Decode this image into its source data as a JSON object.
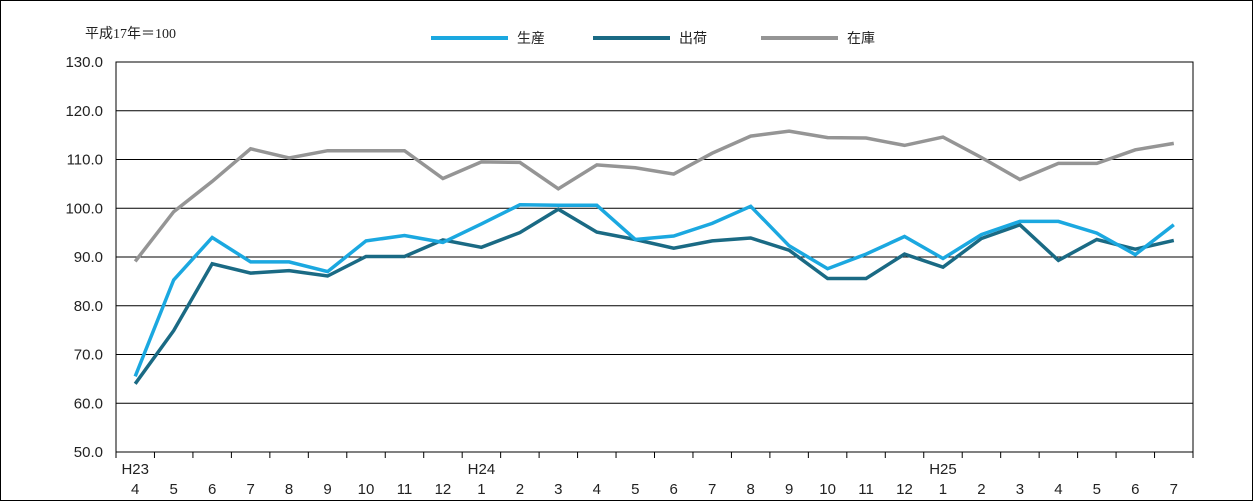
{
  "chart_data": {
    "type": "line",
    "title": "",
    "note": "平成17年＝100",
    "xlabel": "",
    "ylabel": "",
    "ylim": [
      50,
      130
    ],
    "yticks": [
      "50.0",
      "60.0",
      "70.0",
      "80.0",
      "90.0",
      "100.0",
      "110.0",
      "120.0",
      "130.0"
    ],
    "grid": true,
    "legend_position": "top-center",
    "year_labels": [
      {
        "index": 0,
        "label": "H23"
      },
      {
        "index": 9,
        "label": "H24"
      },
      {
        "index": 21,
        "label": "H25"
      }
    ],
    "categories": [
      "4",
      "5",
      "6",
      "7",
      "8",
      "9",
      "10",
      "11",
      "12",
      "1",
      "2",
      "3",
      "4",
      "5",
      "6",
      "7",
      "8",
      "9",
      "10",
      "11",
      "12",
      "1",
      "2",
      "3",
      "4",
      "5",
      "6",
      "7"
    ],
    "series": [
      {
        "name": "生産",
        "color": "#1ba8e0",
        "values": [
          65.5,
          85.3,
          94.0,
          89.0,
          89.0,
          87.0,
          93.3,
          94.4,
          93.0,
          96.8,
          100.7,
          100.6,
          100.6,
          93.6,
          94.3,
          96.9,
          100.4,
          92.3,
          87.6,
          90.6,
          94.2,
          89.7,
          94.6,
          97.3,
          97.3,
          94.9,
          90.5,
          96.6
        ]
      },
      {
        "name": "出荷",
        "color": "#1a6a84",
        "values": [
          64.0,
          74.9,
          88.6,
          86.7,
          87.2,
          86.1,
          90.1,
          90.1,
          93.5,
          92.0,
          95.0,
          99.8,
          95.1,
          93.6,
          91.8,
          93.3,
          93.9,
          91.4,
          85.6,
          85.6,
          90.6,
          87.9,
          93.8,
          96.6,
          89.3,
          93.6,
          91.6,
          93.4
        ]
      },
      {
        "name": "在庫",
        "color": "#959595",
        "values": [
          89.1,
          99.3,
          105.5,
          112.2,
          110.3,
          111.8,
          111.8,
          111.8,
          106.1,
          109.5,
          109.4,
          104.0,
          108.9,
          108.3,
          107.0,
          111.3,
          114.8,
          115.8,
          114.5,
          114.4,
          112.9,
          114.6,
          110.4,
          105.9,
          109.2,
          109.2,
          112.0,
          113.3
        ]
      }
    ]
  }
}
